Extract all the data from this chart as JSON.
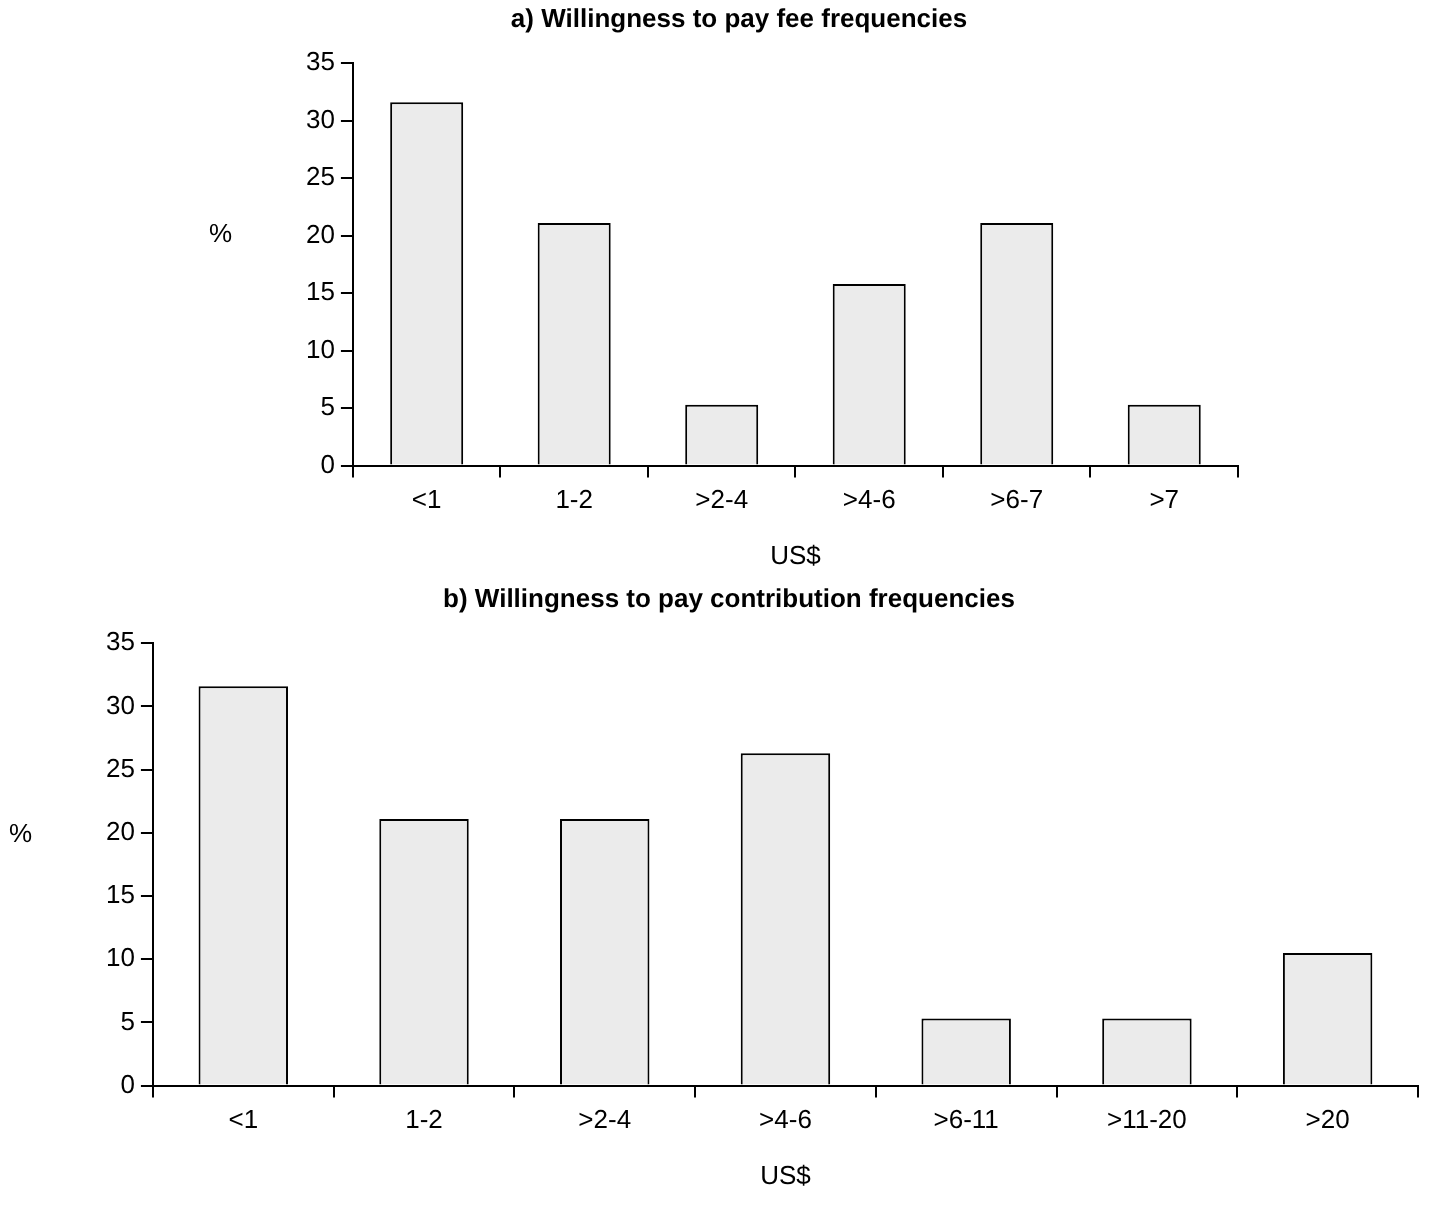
{
  "chart_data": [
    {
      "type": "bar",
      "title": "a) Willingness to pay fee frequencies",
      "xlabel": "US$",
      "ylabel": "%",
      "categories": [
        "<1",
        "1-2",
        ">2-4",
        ">4-6",
        ">6-7",
        ">7"
      ],
      "values": [
        31.6,
        21.1,
        5.3,
        15.8,
        21.1,
        5.3
      ],
      "color": "#ebebeb",
      "ylim": [
        0,
        35
      ],
      "yticks": [
        0,
        5,
        10,
        15,
        20,
        25,
        30,
        35
      ],
      "grid": false,
      "legend": false
    },
    {
      "type": "bar",
      "title": "b) Willingness to pay contribution frequencies",
      "xlabel": "US$",
      "ylabel": "%",
      "categories": [
        "<1",
        "1-2",
        ">2-4",
        ">4-6",
        ">6-11",
        ">11-20",
        ">20"
      ],
      "values": [
        31.6,
        21.1,
        21.1,
        26.3,
        5.3,
        5.3,
        10.5
      ],
      "color": "#ebebeb",
      "ylim": [
        0,
        35
      ],
      "yticks": [
        0,
        5,
        10,
        15,
        20,
        25,
        30,
        35
      ],
      "grid": false,
      "legend": false
    }
  ]
}
